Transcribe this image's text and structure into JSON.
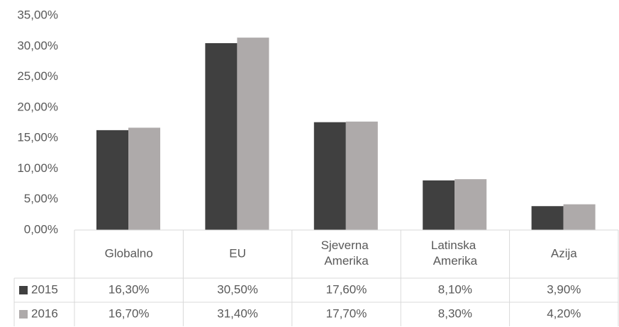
{
  "chart_data": {
    "type": "bar",
    "categories": [
      "Globalno",
      "EU",
      "Sjeverna Amerika",
      "Latinska Amerika",
      "Azija"
    ],
    "series": [
      {
        "name": "2015",
        "color": "#404040",
        "values": [
          16.3,
          30.5,
          17.6,
          8.1,
          3.9
        ],
        "value_labels": [
          "16,30%",
          "30,50%",
          "17,60%",
          "8,10%",
          "3,90%"
        ]
      },
      {
        "name": "2016",
        "color": "#aeaaaa",
        "values": [
          16.7,
          31.4,
          17.7,
          8.3,
          4.2
        ],
        "value_labels": [
          "16,70%",
          "31,40%",
          "17,70%",
          "8,30%",
          "4,20%"
        ]
      }
    ],
    "ylim": [
      0,
      35
    ],
    "yticks": [
      {
        "value": 0,
        "label": "0,00%"
      },
      {
        "value": 5,
        "label": "5,00%"
      },
      {
        "value": 10,
        "label": "10,00%"
      },
      {
        "value": 15,
        "label": "15,00%"
      },
      {
        "value": 20,
        "label": "20,00%"
      },
      {
        "value": 25,
        "label": "25,00%"
      },
      {
        "value": 30,
        "label": "30,00%"
      },
      {
        "value": 35,
        "label": "35,00%"
      }
    ],
    "grid": false
  }
}
